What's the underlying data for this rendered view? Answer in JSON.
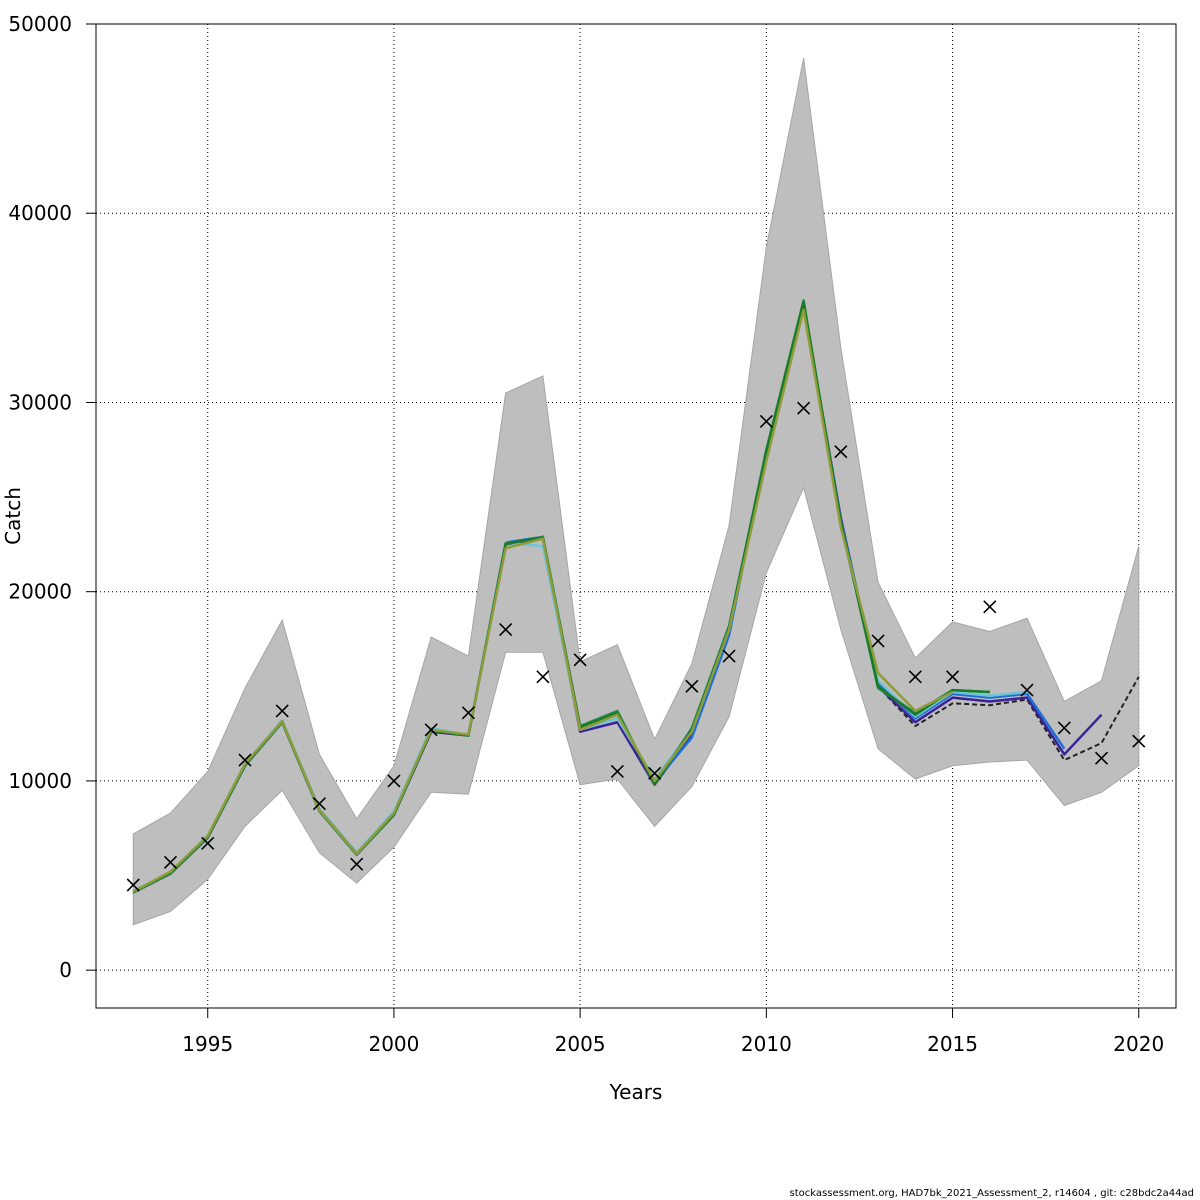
{
  "footer": "stockassessment.org, HAD7bk_2021_Assessment_2, r14604 , git: c28bdc2a44ad",
  "colors": {
    "band": "#bebebe",
    "band_edge": "#a6a6a6",
    "grid": "#000000",
    "frame": "#000000",
    "observed": "#000000"
  },
  "chart_data": {
    "type": "line",
    "xlabel": "Years",
    "ylabel": "Catch",
    "xlim": [
      1992,
      2021
    ],
    "ylim": [
      -2000,
      50000
    ],
    "xticks": [
      1995,
      2000,
      2005,
      2010,
      2015,
      2020
    ],
    "yticks": [
      0,
      10000,
      20000,
      30000,
      40000,
      50000
    ],
    "grid": true,
    "x": [
      1993,
      1994,
      1995,
      1996,
      1997,
      1998,
      1999,
      2000,
      2001,
      2002,
      2003,
      2004,
      2005,
      2006,
      2007,
      2008,
      2009,
      2010,
      2011,
      2012,
      2013,
      2014,
      2015,
      2016,
      2017,
      2018,
      2019,
      2020
    ],
    "confidence_band": {
      "lower": [
        2400,
        3100,
        4800,
        7600,
        9500,
        6200,
        4600,
        6500,
        9400,
        9300,
        16800,
        16800,
        9800,
        10100,
        7600,
        9700,
        13400,
        21000,
        25500,
        18000,
        11700,
        10100,
        10800,
        11000,
        11100,
        8700,
        9400,
        10800
      ],
      "upper": [
        7200,
        8300,
        10500,
        14900,
        18500,
        11400,
        8000,
        10800,
        17600,
        16600,
        30500,
        31400,
        16300,
        17200,
        12200,
        16200,
        23500,
        38200,
        48200,
        32900,
        20500,
        16500,
        18400,
        17900,
        18600,
        14200,
        15300,
        22400
      ]
    },
    "observed": {
      "marker": "x",
      "y": [
        4500,
        5700,
        6700,
        11100,
        13700,
        8800,
        5600,
        10000,
        12700,
        13600,
        18000,
        15500,
        16400,
        10500,
        10400,
        15000,
        16600,
        29000,
        29700,
        27400,
        17400,
        15500,
        15500,
        19200,
        14800,
        12800,
        11200,
        12100
      ]
    },
    "series": [
      {
        "color": "#222222",
        "dashed": true,
        "y": [
          4100,
          5100,
          7000,
          10800,
          13100,
          8400,
          6100,
          8200,
          12600,
          12400,
          22500,
          22800,
          12600,
          13100,
          9800,
          12500,
          17900,
          27200,
          35100,
          23900,
          15000,
          12900,
          14100,
          14000,
          14300,
          11100,
          12000,
          15500
        ]
      },
      {
        "color": "#3b2296",
        "dashed": false,
        "y": [
          4100,
          5100,
          7000,
          10800,
          13100,
          8400,
          6100,
          8200,
          12600,
          12400,
          22500,
          22800,
          12600,
          13100,
          9800,
          12500,
          17900,
          27200,
          35100,
          23900,
          15000,
          13100,
          14400,
          14200,
          14400,
          11400,
          13500,
          null
        ]
      },
      {
        "color": "#1f6fd6",
        "dashed": false,
        "y": [
          4100,
          5100,
          7000,
          10800,
          13100,
          8500,
          6200,
          8300,
          12700,
          12400,
          22600,
          22900,
          12800,
          13500,
          9900,
          12300,
          17700,
          27500,
          35200,
          23800,
          15200,
          13300,
          14600,
          14400,
          14600,
          11700,
          null,
          null
        ]
      },
      {
        "color": "#6ec3d6",
        "dashed": false,
        "y": [
          4200,
          5100,
          7100,
          10900,
          13200,
          8500,
          6200,
          8400,
          12800,
          12400,
          22600,
          22400,
          12700,
          13300,
          10100,
          12700,
          18000,
          27000,
          35000,
          23500,
          15300,
          13400,
          14700,
          14500,
          14700,
          null,
          null,
          null
        ]
      },
      {
        "color": "#2e8b57",
        "dashed": false,
        "y": [
          4100,
          5100,
          7000,
          10800,
          13100,
          8400,
          6100,
          8200,
          12700,
          12400,
          22500,
          22900,
          12900,
          13700,
          9800,
          12800,
          18200,
          27500,
          35400,
          23600,
          14900,
          13600,
          14800,
          14700,
          null,
          null,
          null,
          null
        ]
      },
      {
        "color": "#1a7a26",
        "dashed": false,
        "y": [
          4150,
          5150,
          7050,
          10850,
          13150,
          8450,
          6150,
          8250,
          12650,
          12400,
          22550,
          22850,
          12850,
          13600,
          9850,
          12700,
          18100,
          27400,
          35300,
          23700,
          15000,
          13500,
          14800,
          14700,
          null,
          null,
          null,
          null
        ]
      },
      {
        "color": "#8e9c3a",
        "dashed": false,
        "y": [
          4150,
          5200,
          7100,
          10900,
          13150,
          8450,
          6150,
          8300,
          12700,
          12450,
          22300,
          22800,
          12700,
          13500,
          10000,
          12600,
          18000,
          26900,
          34900,
          23400,
          15700,
          13700,
          14700,
          null,
          null,
          null,
          null,
          null
        ]
      }
    ]
  }
}
